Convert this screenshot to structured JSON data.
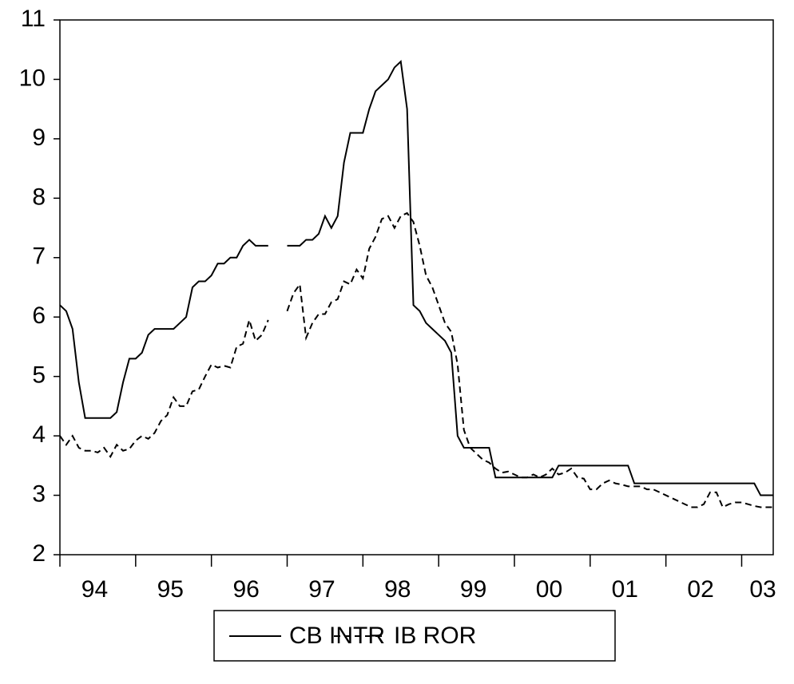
{
  "chart_data": {
    "type": "line",
    "categories": [
      "94",
      null,
      null,
      null,
      null,
      null,
      null,
      null,
      null,
      null,
      null,
      null,
      "95",
      null,
      null,
      null,
      null,
      null,
      null,
      null,
      null,
      null,
      null,
      null,
      "96",
      null,
      null,
      null,
      null,
      null,
      null,
      null,
      null,
      null,
      null,
      null,
      "97",
      null,
      null,
      null,
      null,
      null,
      null,
      null,
      null,
      null,
      null,
      null,
      "98",
      null,
      null,
      null,
      null,
      null,
      null,
      null,
      null,
      null,
      null,
      null,
      "99",
      null,
      null,
      null,
      null,
      null,
      null,
      null,
      null,
      null,
      null,
      null,
      "00",
      null,
      null,
      null,
      null,
      null,
      null,
      null,
      null,
      null,
      null,
      null,
      "01",
      null,
      null,
      null,
      null,
      null,
      null,
      null,
      null,
      null,
      null,
      null,
      "02",
      null,
      null,
      null,
      null,
      null,
      null,
      null,
      null,
      null,
      null,
      null,
      "03",
      null,
      null,
      null,
      null,
      null
    ],
    "series": [
      {
        "name": "CB INTR",
        "color": "#000000",
        "line_style": "solid",
        "values": [
          6.2,
          6.1,
          5.8,
          4.9,
          4.3,
          4.3,
          4.3,
          4.3,
          4.3,
          4.4,
          4.9,
          5.3,
          5.3,
          5.4,
          5.7,
          5.8,
          5.8,
          5.8,
          5.8,
          5.9,
          6.0,
          6.5,
          6.6,
          6.6,
          6.7,
          6.9,
          6.9,
          7.0,
          7.0,
          7.2,
          7.3,
          7.2,
          7.2,
          7.2,
          null,
          null,
          7.2,
          7.2,
          7.2,
          7.3,
          7.3,
          7.4,
          7.7,
          7.5,
          7.7,
          8.6,
          9.1,
          9.1,
          9.1,
          9.5,
          9.8,
          9.9,
          10.0,
          10.2,
          10.3,
          9.5,
          6.2,
          6.1,
          5.9,
          5.8,
          5.7,
          5.6,
          5.4,
          4.0,
          3.8,
          3.8,
          3.8,
          3.8,
          3.8,
          3.3,
          3.3,
          3.3,
          3.3,
          3.3,
          3.3,
          3.3,
          3.3,
          3.3,
          3.3,
          3.5,
          3.5,
          3.5,
          3.5,
          3.5,
          3.5,
          3.5,
          3.5,
          3.5,
          3.5,
          3.5,
          3.5,
          3.2,
          3.2,
          3.2,
          3.2,
          3.2,
          3.2,
          3.2,
          3.2,
          3.2,
          3.2,
          3.2,
          3.2,
          3.2,
          3.2,
          3.2,
          3.2,
          3.2,
          3.2,
          3.2,
          3.2,
          3.0,
          3.0,
          3.0
        ]
      },
      {
        "name": "IB ROR",
        "color": "#000000",
        "line_style": "dashed",
        "values": [
          4.0,
          3.85,
          4.0,
          3.8,
          3.75,
          3.75,
          3.72,
          3.8,
          3.65,
          3.85,
          3.75,
          3.78,
          3.92,
          4.0,
          3.95,
          4.05,
          4.25,
          4.35,
          4.65,
          4.5,
          4.5,
          4.75,
          4.78,
          5.0,
          5.2,
          5.15,
          5.18,
          5.15,
          5.5,
          5.55,
          5.95,
          5.6,
          5.7,
          5.95,
          null,
          null,
          6.1,
          6.4,
          6.55,
          5.65,
          5.9,
          6.05,
          6.05,
          6.25,
          6.3,
          6.6,
          6.55,
          6.8,
          6.65,
          7.15,
          7.35,
          7.65,
          7.7,
          7.5,
          7.7,
          7.75,
          7.6,
          7.2,
          6.7,
          6.5,
          6.2,
          5.9,
          5.75,
          5.2,
          4.1,
          3.8,
          3.7,
          3.6,
          3.55,
          3.45,
          3.38,
          3.4,
          3.35,
          3.3,
          3.3,
          3.35,
          3.3,
          3.35,
          3.45,
          3.35,
          3.38,
          3.45,
          3.3,
          3.28,
          3.1,
          3.1,
          3.2,
          3.25,
          3.2,
          3.18,
          3.15,
          3.15,
          3.15,
          3.1,
          3.1,
          3.05,
          3.0,
          2.95,
          2.9,
          2.85,
          2.8,
          2.8,
          2.85,
          3.05,
          3.05,
          2.8,
          2.85,
          2.88,
          2.88,
          2.85,
          2.82,
          2.8,
          2.8,
          2.8
        ]
      }
    ],
    "ylim": [
      2,
      11
    ],
    "yticks": [
      2,
      3,
      4,
      5,
      6,
      7,
      8,
      9,
      10,
      11
    ],
    "grid": false,
    "legend": "bottom"
  }
}
